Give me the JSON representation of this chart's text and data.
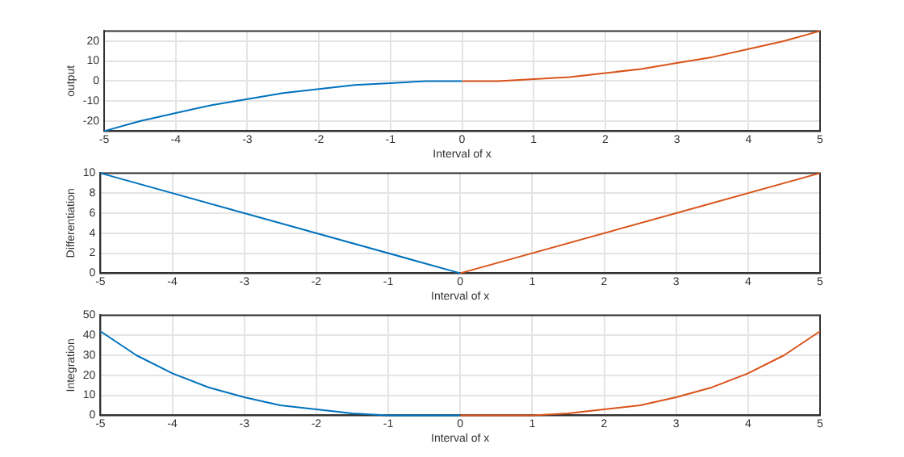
{
  "chart_data": [
    {
      "type": "line",
      "xlabel": "Interval of x",
      "ylabel": "output",
      "xlim": [
        -5,
        5
      ],
      "xticks": [
        -5,
        -4,
        -3,
        -2,
        -1,
        0,
        1,
        2,
        3,
        4,
        5
      ],
      "ylim": [
        -25,
        25
      ],
      "yticks": [
        -20,
        -10,
        0,
        10,
        20
      ],
      "grid": true,
      "legend": false,
      "marker": "none",
      "series": [
        {
          "color": "#0072bd",
          "x": [
            -5,
            -4.5,
            -4,
            -3.5,
            -3,
            -2.5,
            -2,
            -1.5,
            -1,
            -0.5,
            0
          ],
          "values": [
            -25,
            -20,
            -16,
            -12,
            -9,
            -6,
            -4,
            -2,
            -1,
            0,
            0
          ]
        },
        {
          "color": "#d95319",
          "x": [
            0,
            0.5,
            1,
            1.5,
            2,
            2.5,
            3,
            3.5,
            4,
            4.5,
            5
          ],
          "values": [
            0,
            0,
            1,
            2,
            4,
            6,
            9,
            12,
            16,
            20,
            25
          ]
        }
      ]
    },
    {
      "type": "line",
      "xlabel": "Interval of x",
      "ylabel": "Differentiation",
      "xlim": [
        -5,
        5
      ],
      "xticks": [
        -5,
        -4,
        -3,
        -2,
        -1,
        0,
        1,
        2,
        3,
        4,
        5
      ],
      "ylim": [
        0,
        10
      ],
      "yticks": [
        0,
        2,
        4,
        6,
        8,
        10
      ],
      "grid": true,
      "legend": false,
      "marker": "none",
      "series": [
        {
          "color": "#0072bd",
          "x": [
            -5,
            0
          ],
          "values": [
            10,
            0
          ]
        },
        {
          "color": "#d95319",
          "x": [
            0,
            5
          ],
          "values": [
            0,
            10
          ]
        }
      ]
    },
    {
      "type": "line",
      "xlabel": "Interval of x",
      "ylabel": "Integration",
      "xlim": [
        -5,
        5
      ],
      "xticks": [
        -5,
        -4,
        -3,
        -2,
        -1,
        0,
        1,
        2,
        3,
        4,
        5
      ],
      "ylim": [
        0,
        50
      ],
      "yticks": [
        0,
        10,
        20,
        30,
        40,
        50
      ],
      "grid": true,
      "legend": false,
      "marker": "none",
      "series": [
        {
          "color": "#0072bd",
          "x": [
            -5,
            -4.5,
            -4,
            -3.5,
            -3,
            -2.5,
            -2,
            -1.5,
            -1,
            -0.5,
            0
          ],
          "values": [
            42,
            30,
            21,
            14,
            9,
            5,
            3,
            1,
            0,
            0,
            0
          ]
        },
        {
          "color": "#d95319",
          "x": [
            0,
            0.5,
            1,
            1.5,
            2,
            2.5,
            3,
            3.5,
            4,
            4.5,
            5
          ],
          "values": [
            0,
            0,
            0,
            1,
            3,
            5,
            9,
            14,
            21,
            30,
            42
          ]
        }
      ]
    }
  ]
}
